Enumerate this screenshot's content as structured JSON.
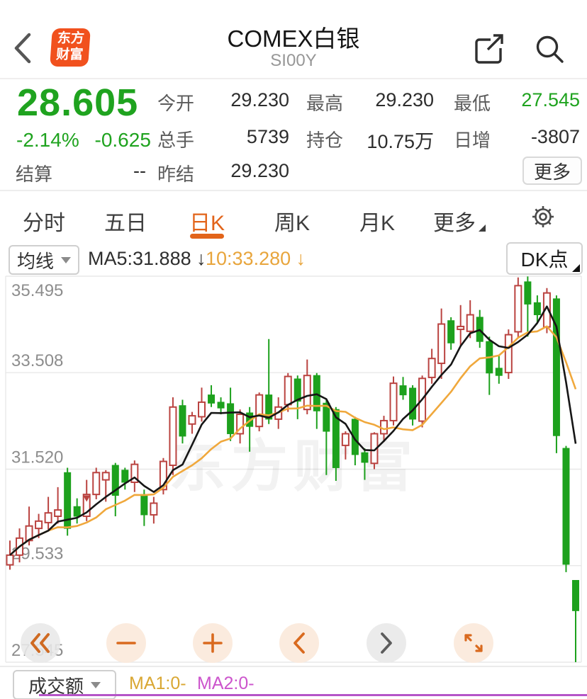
{
  "header": {
    "title": "COMEX白银",
    "subtitle": "SI00Y",
    "logo_line1": "东方",
    "logo_line2": "财富"
  },
  "quote": {
    "last": "28.605",
    "change_pct": "-2.14%",
    "change": "-0.625",
    "settle_label": "结算",
    "settle_value": "--",
    "fields": [
      {
        "label": "今开",
        "value": "29.230"
      },
      {
        "label": "最高",
        "value": "29.230"
      },
      {
        "label": "最低",
        "value": "27.545"
      },
      {
        "label": "总手",
        "value": "5739"
      },
      {
        "label": "持仓",
        "value": "10.75万"
      },
      {
        "label": "日增",
        "value": "-3807"
      },
      {
        "label": "昨结",
        "value": "29.230"
      }
    ],
    "more_label": "更多"
  },
  "tabs": {
    "items": [
      "分时",
      "五日",
      "日K",
      "周K",
      "月K",
      "更多"
    ],
    "active": "日K"
  },
  "toolbar": {
    "ma_selector": "均线",
    "ma5_label": "MA5:31.888",
    "ma5_arrow": "↓",
    "ma10_label": "10:33.280",
    "ma10_arrow": "↓",
    "dk_label": "DK点"
  },
  "chart_data": {
    "type": "candlestick",
    "title": "COMEX白银 日K",
    "ylim": [
      27.545,
      35.495
    ],
    "y_ticks": [
      "35.495",
      "33.508",
      "31.520",
      "29.533",
      "27.545"
    ],
    "grid": true,
    "watermark": "东方财富",
    "up_color": "#ba4340",
    "down_color": "#1da11d",
    "ma5_color": "#161616",
    "ma10_color": "#f0a83c",
    "ma5_last": 31.888,
    "ma10_last": 33.28,
    "marker": {
      "index": 8,
      "price": 30.98
    },
    "ohlc": [
      [
        29.55,
        30.05,
        29.45,
        29.75
      ],
      [
        29.75,
        30.3,
        29.6,
        30.1
      ],
      [
        30.05,
        30.75,
        29.95,
        30.35
      ],
      [
        30.3,
        30.6,
        30.1,
        30.45
      ],
      [
        30.42,
        30.95,
        30.28,
        30.62
      ],
      [
        30.55,
        31.15,
        30.4,
        30.68
      ],
      [
        31.45,
        31.55,
        30.15,
        30.3
      ],
      [
        30.75,
        30.92,
        30.4,
        30.55
      ],
      [
        30.55,
        31.3,
        30.45,
        31.0
      ],
      [
        31.0,
        31.55,
        30.9,
        31.45
      ],
      [
        31.3,
        31.5,
        30.85,
        31.45
      ],
      [
        31.6,
        31.65,
        30.55,
        30.98
      ],
      [
        31.5,
        31.55,
        31.1,
        31.25
      ],
      [
        31.25,
        31.7,
        31.05,
        31.62
      ],
      [
        31.0,
        31.1,
        30.35,
        30.58
      ],
      [
        30.58,
        30.95,
        30.4,
        30.82
      ],
      [
        31.1,
        31.75,
        31.0,
        31.68
      ],
      [
        31.6,
        33.0,
        31.4,
        32.8
      ],
      [
        32.83,
        32.95,
        32.05,
        32.2
      ],
      [
        32.45,
        32.7,
        32.25,
        32.62
      ],
      [
        32.6,
        33.2,
        32.5,
        32.9
      ],
      [
        33.05,
        33.25,
        32.8,
        32.88
      ],
      [
        32.9,
        33.0,
        32.65,
        32.78
      ],
      [
        32.87,
        33.2,
        32.1,
        32.25
      ],
      [
        32.25,
        32.75,
        32.05,
        32.65
      ],
      [
        32.68,
        32.8,
        31.88,
        32.4
      ],
      [
        32.4,
        33.1,
        32.3,
        33.05
      ],
      [
        33.05,
        34.2,
        32.45,
        32.55
      ],
      [
        32.55,
        33.0,
        32.35,
        32.8
      ],
      [
        32.85,
        33.5,
        32.7,
        33.43
      ],
      [
        33.38,
        33.45,
        32.55,
        32.92
      ],
      [
        32.75,
        33.78,
        32.65,
        33.45
      ],
      [
        33.45,
        33.5,
        32.35,
        32.72
      ],
      [
        32.88,
        32.95,
        31.4,
        32.3
      ],
      [
        32.75,
        32.8,
        31.28,
        31.55
      ],
      [
        32.01,
        32.3,
        31.72,
        32.25
      ],
      [
        32.55,
        32.6,
        31.6,
        31.82
      ],
      [
        31.86,
        31.95,
        31.3,
        31.66
      ],
      [
        31.64,
        32.28,
        31.52,
        32.25
      ],
      [
        32.25,
        32.62,
        32.08,
        32.52
      ],
      [
        32.52,
        33.43,
        32.42,
        33.29
      ],
      [
        33.24,
        33.42,
        32.95,
        33.05
      ],
      [
        33.19,
        33.25,
        32.42,
        32.55
      ],
      [
        32.51,
        33.45,
        32.38,
        33.39
      ],
      [
        33.41,
        34.0,
        33.28,
        33.8
      ],
      [
        33.7,
        34.83,
        33.38,
        34.51
      ],
      [
        34.58,
        34.65,
        33.98,
        34.12
      ],
      [
        34.4,
        34.9,
        34.05,
        34.46
      ],
      [
        34.36,
        35.0,
        34.22,
        34.7
      ],
      [
        34.65,
        34.8,
        34.02,
        34.15
      ],
      [
        34.15,
        34.25,
        33.05,
        33.5
      ],
      [
        33.6,
        33.85,
        33.28,
        33.45
      ],
      [
        33.51,
        34.4,
        33.38,
        34.29
      ],
      [
        34.35,
        35.47,
        34.22,
        35.3
      ],
      [
        35.38,
        35.49,
        34.25,
        34.92
      ],
      [
        34.95,
        35.1,
        34.52,
        34.7
      ],
      [
        34.45,
        35.25,
        34.32,
        35.15
      ],
      [
        35.03,
        35.1,
        31.85,
        32.21
      ],
      [
        31.95,
        32.0,
        29.4,
        29.56
      ],
      [
        29.23,
        29.23,
        27.545,
        28.605
      ]
    ]
  },
  "controls": {
    "buttons": [
      "rewind",
      "zoom-out",
      "zoom-in",
      "prev",
      "next",
      "fullscreen"
    ]
  },
  "bottom": {
    "selector": "成交额",
    "ma1": "MA1:0-",
    "ma2": "MA2:0-",
    "zero": "0"
  },
  "colors": {
    "up_red": "#ba4340",
    "down_green": "#1da11d",
    "price_green": "#1fa31f",
    "accent_orange": "#e2641a",
    "logo_orange": "#f1511e",
    "ma10_orange": "#f0a83c",
    "vol_ma1_yellow": "#d9a733",
    "vol_ma2_magenta": "#cc55cc",
    "vol_line_purple": "#b554c8"
  }
}
